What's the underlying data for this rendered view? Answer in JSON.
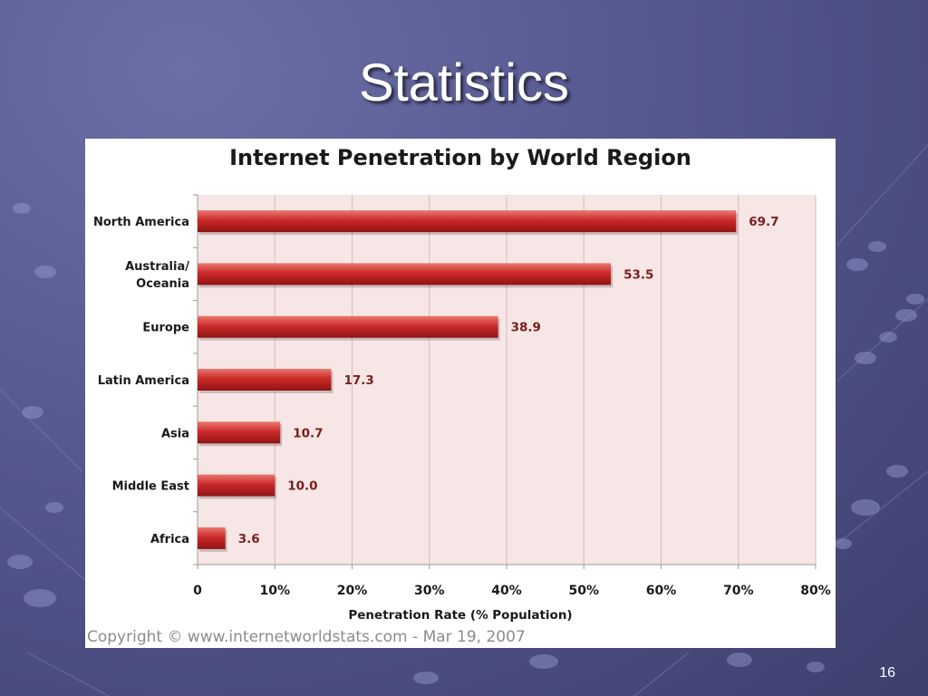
{
  "slide": {
    "title": "Statistics",
    "page_number": "16"
  },
  "chart_data": {
    "type": "bar",
    "orientation": "horizontal",
    "title": "Internet Penetration by World Region",
    "xlabel": "Penetration Rate (% Population)",
    "ylabel": "",
    "categories": [
      "North America",
      "Australia/ Oceania",
      "Europe",
      "Latin America",
      "Asia",
      "Middle East",
      "Africa"
    ],
    "category_lines": [
      [
        "North America"
      ],
      [
        "Australia/",
        "Oceania"
      ],
      [
        "Europe"
      ],
      [
        "Latin America"
      ],
      [
        "Asia"
      ],
      [
        "Middle East"
      ],
      [
        "Africa"
      ]
    ],
    "values": [
      69.7,
      53.5,
      38.9,
      17.3,
      10.7,
      10.0,
      3.6
    ],
    "data_labels": [
      "69.7",
      "53.5",
      "38.9",
      "17.3",
      "10.7",
      "10.0",
      "3.6"
    ],
    "xlim": [
      0,
      80
    ],
    "x_ticks": [
      0,
      10,
      20,
      30,
      40,
      50,
      60,
      70,
      80
    ],
    "x_tick_labels": [
      "0",
      "10%",
      "20%",
      "30%",
      "40%",
      "50%",
      "60%",
      "70%",
      "80%"
    ],
    "grid": true,
    "legend": "none",
    "bar_color": "#cc2a2a",
    "plot_background": "#f7e6e6",
    "gridline_color": "#e0b8b8",
    "copyright": "Copyright © www.internetworldstats.com - Mar 19, 2007"
  }
}
